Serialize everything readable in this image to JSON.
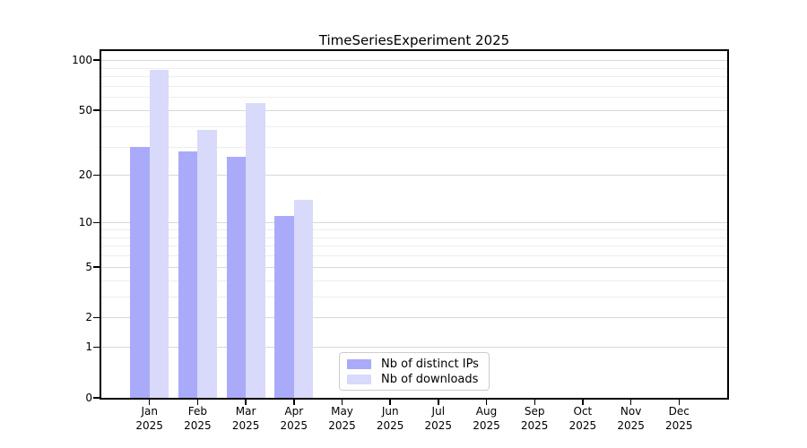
{
  "title": "TimeSeriesExperiment 2025",
  "colors": {
    "distinct_ips_bar": "#aaaafa",
    "downloads_bar": "#d9d9fb",
    "major_gridline": "#d8d8d8",
    "minor_gridline": "#ededed",
    "axis": "#000000",
    "legend_border": "#cccccc"
  },
  "chart_data": {
    "type": "bar",
    "title": "TimeSeriesExperiment 2025",
    "categories": [
      "Jan",
      "Feb",
      "Mar",
      "Apr",
      "May",
      "Jun",
      "Jul",
      "Aug",
      "Sep",
      "Oct",
      "Nov",
      "Dec"
    ],
    "x_year_label": "2025",
    "series": [
      {
        "name": "Nb of distinct IPs",
        "color": "#aaaafa",
        "values": [
          30,
          28,
          26,
          11,
          null,
          null,
          null,
          null,
          null,
          null,
          null,
          null
        ]
      },
      {
        "name": "Nb of downloads",
        "color": "#d9d9fb",
        "values": [
          87,
          38,
          55,
          14,
          null,
          null,
          null,
          null,
          null,
          null,
          null,
          null
        ]
      }
    ],
    "xlabel": "",
    "ylabel": "",
    "yscale": "log-like: y proportional to log10(1+value)",
    "ylim": [
      0,
      100
    ],
    "y_ticks": [
      0,
      1,
      2,
      5,
      10,
      20,
      50,
      100
    ],
    "major_grid_values": [
      1,
      2,
      5,
      10,
      20,
      50,
      100
    ],
    "minor_grid_values": [
      3,
      4,
      6,
      7,
      8,
      9,
      30,
      40,
      60,
      70,
      80,
      90
    ],
    "grid": "horizontal only",
    "legend_position": "inside plot, bottom center-right"
  }
}
